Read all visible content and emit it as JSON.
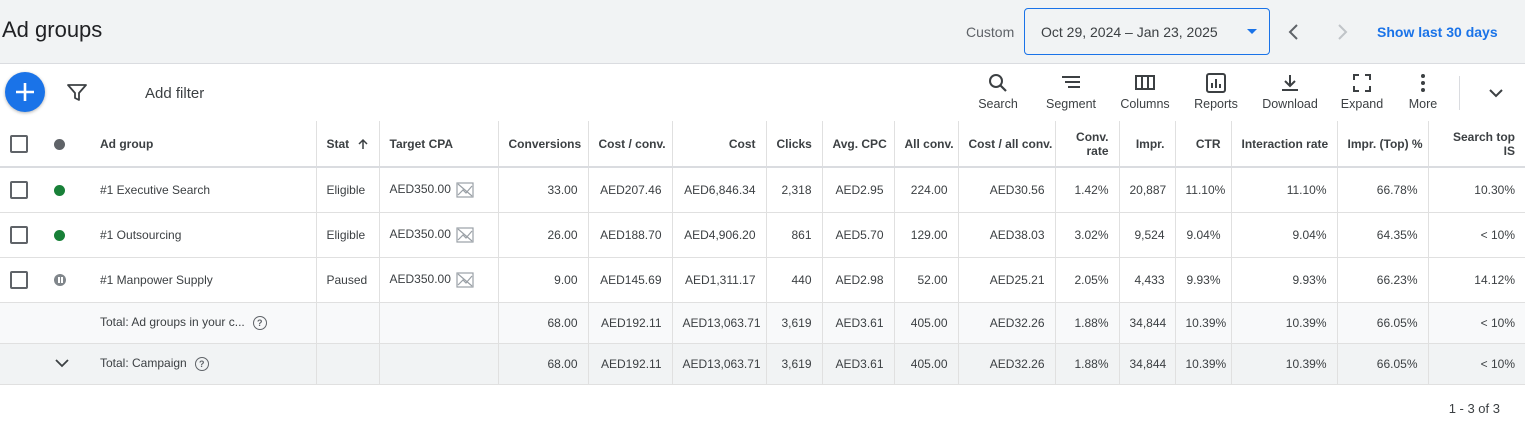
{
  "header": {
    "title": "Ad groups",
    "date_mode": "Custom",
    "date_range": "Oct 29, 2024 – Jan 23, 2025",
    "show_last_label": "Show last 30 days"
  },
  "toolbar": {
    "add_filter": "Add filter",
    "tools": [
      {
        "label": "Search",
        "icon": "search-icon"
      },
      {
        "label": "Segment",
        "icon": "segment-icon"
      },
      {
        "label": "Columns",
        "icon": "columns-icon"
      },
      {
        "label": "Reports",
        "icon": "reports-icon"
      },
      {
        "label": "Download",
        "icon": "download-icon"
      },
      {
        "label": "Expand",
        "icon": "expand-icon"
      },
      {
        "label": "More",
        "icon": "more-vert-icon"
      }
    ]
  },
  "table": {
    "headers": {
      "ad_group": "Ad group",
      "status": "Stat",
      "target_cpa": "Target CPA",
      "conversions": "Conversions",
      "cost_conv": "Cost / conv.",
      "cost": "Cost",
      "clicks": "Clicks",
      "avg_cpc": "Avg. CPC",
      "all_conv": "All conv.",
      "cost_all_conv": "Cost / all conv.",
      "conv_rate_1": "Conv.",
      "conv_rate_2": "rate",
      "impr": "Impr.",
      "ctr": "CTR",
      "interaction_rate": "Interaction rate",
      "impr_top": "Impr. (Top) %",
      "search_top_1": "Search top",
      "search_top_2": "IS"
    },
    "rows": [
      {
        "name": "#1 Executive Search",
        "status": "Eligible",
        "status_color": "#188038",
        "target_cpa": "AED350.00",
        "conversions": "33.00",
        "cost_conv": "AED207.46",
        "cost": "AED6,846.34",
        "clicks": "2,318",
        "avg_cpc": "AED2.95",
        "all_conv": "224.00",
        "cost_all_conv": "AED30.56",
        "conv_rate": "1.42%",
        "impr": "20,887",
        "ctr": "11.10%",
        "interaction_rate": "11.10%",
        "impr_top": "66.78%",
        "search_top_is": "10.30%"
      },
      {
        "name": "#1 Outsourcing",
        "status": "Eligible",
        "status_color": "#188038",
        "target_cpa": "AED350.00",
        "conversions": "26.00",
        "cost_conv": "AED188.70",
        "cost": "AED4,906.20",
        "clicks": "861",
        "avg_cpc": "AED5.70",
        "all_conv": "129.00",
        "cost_all_conv": "AED38.03",
        "conv_rate": "3.02%",
        "impr": "9,524",
        "ctr": "9.04%",
        "interaction_rate": "9.04%",
        "impr_top": "64.35%",
        "search_top_is": "< 10%"
      },
      {
        "name": "#1 Manpower Supply",
        "status": "Paused",
        "status_color": "#80868b",
        "target_cpa": "AED350.00",
        "conversions": "9.00",
        "cost_conv": "AED145.69",
        "cost": "AED1,311.17",
        "clicks": "440",
        "avg_cpc": "AED2.98",
        "all_conv": "52.00",
        "cost_all_conv": "AED25.21",
        "conv_rate": "2.05%",
        "impr": "4,433",
        "ctr": "9.93%",
        "interaction_rate": "9.93%",
        "impr_top": "66.23%",
        "search_top_is": "14.12%"
      }
    ],
    "totals": [
      {
        "label": "Total: Ad groups in your c...",
        "conversions": "68.00",
        "cost_conv": "AED192.11",
        "cost": "AED13,063.71",
        "clicks": "3,619",
        "avg_cpc": "AED3.61",
        "all_conv": "405.00",
        "cost_all_conv": "AED32.26",
        "conv_rate": "1.88%",
        "impr": "34,844",
        "ctr": "10.39%",
        "interaction_rate": "10.39%",
        "impr_top": "66.05%",
        "search_top_is": "< 10%"
      },
      {
        "label": "Total: Campaign",
        "conversions": "68.00",
        "cost_conv": "AED192.11",
        "cost": "AED13,063.71",
        "clicks": "3,619",
        "avg_cpc": "AED3.61",
        "all_conv": "405.00",
        "cost_all_conv": "AED32.26",
        "conv_rate": "1.88%",
        "impr": "34,844",
        "ctr": "10.39%",
        "interaction_rate": "10.39%",
        "impr_top": "66.05%",
        "search_top_is": "< 10%"
      }
    ]
  },
  "pagination": "1 - 3 of 3",
  "colors": {
    "accent": "#1a73e8",
    "eligible": "#188038",
    "paused": "#80868b"
  }
}
